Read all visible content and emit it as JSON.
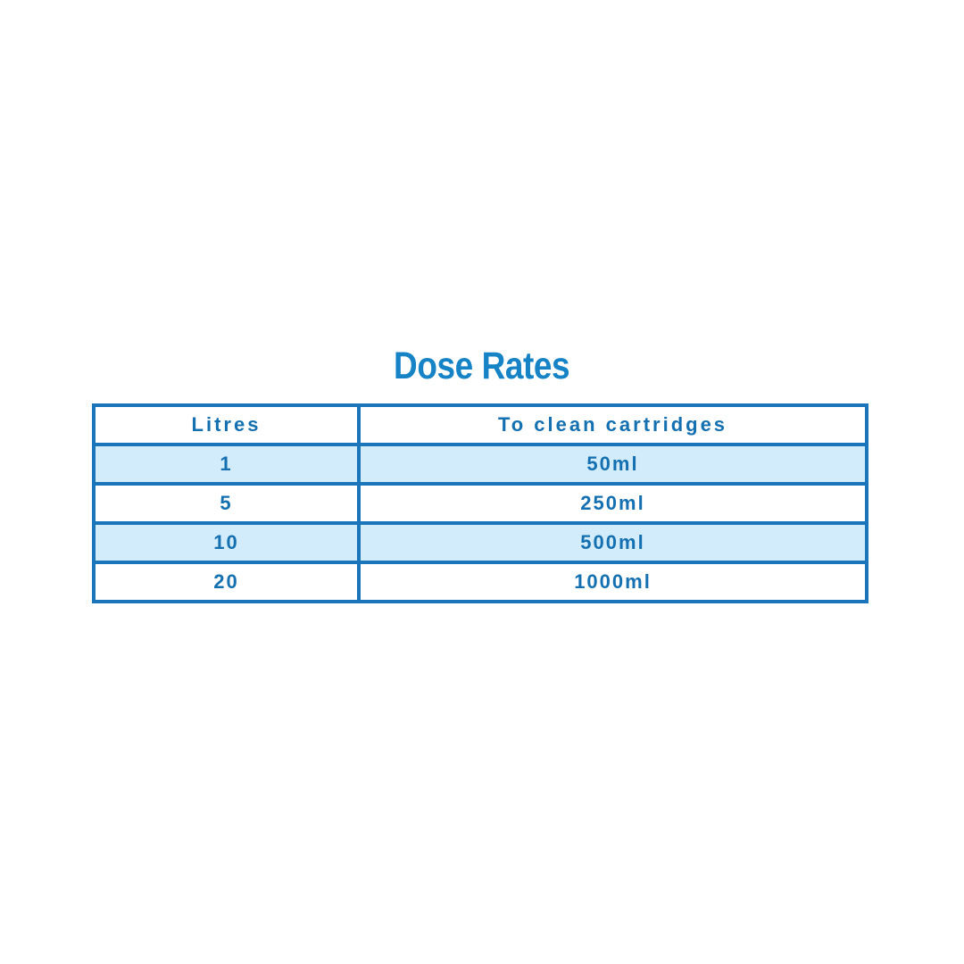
{
  "title": "Dose Rates",
  "table": {
    "headers": {
      "litres": "Litres",
      "dose": "To clean cartridges"
    },
    "rows": [
      {
        "litres": "1",
        "dose": "50ml"
      },
      {
        "litres": "5",
        "dose": "250ml"
      },
      {
        "litres": "10",
        "dose": "500ml"
      },
      {
        "litres": "20",
        "dose": "1000ml"
      }
    ]
  },
  "colors": {
    "title_blue": "#1583c5",
    "border_blue": "#1b75bb",
    "text_blue": "#1470b0",
    "row_highlight": "#d3ecfb",
    "background": "#ffffff"
  },
  "chart_data": {
    "type": "table",
    "title": "Dose Rates",
    "columns": [
      "Litres",
      "To clean cartridges"
    ],
    "rows": [
      [
        1,
        "50ml"
      ],
      [
        5,
        "250ml"
      ],
      [
        10,
        "500ml"
      ],
      [
        20,
        "1000ml"
      ]
    ],
    "layout_hints": {
      "header_background": "white",
      "zebra_striping": "rows 1 and 3 highlighted light blue",
      "all_text_centered": true
    }
  }
}
